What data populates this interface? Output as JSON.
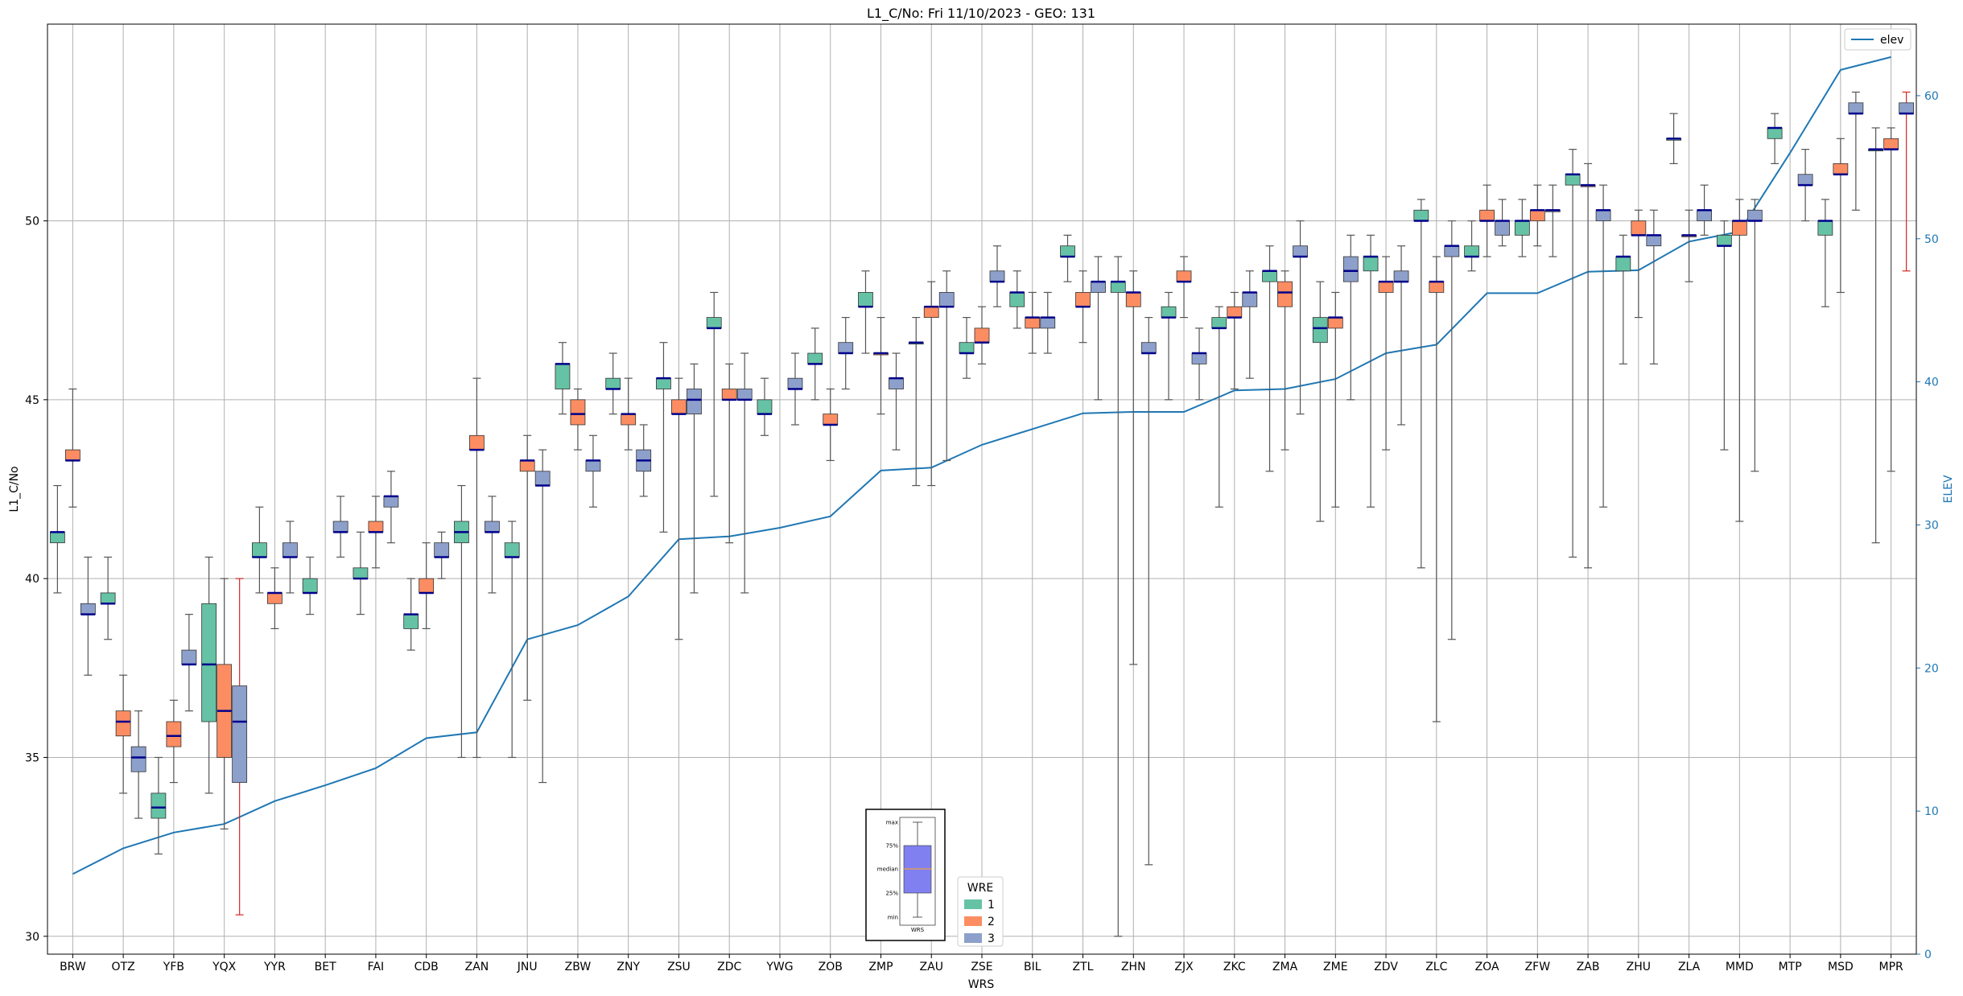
{
  "chart_data": {
    "type": "box",
    "title": "L1_C/No: Fri 11/10/2023 - GEO: 131",
    "xlabel": "WRS",
    "ylabel": "L1_C/No",
    "y2label": "ELEV",
    "ylim": [
      29.5,
      55.5
    ],
    "y2lim": [
      0,
      65
    ],
    "yticks": [
      30,
      35,
      40,
      45,
      50
    ],
    "y2ticks": [
      0,
      10,
      20,
      30,
      40,
      50,
      60
    ],
    "grid": true,
    "categories": [
      "BRW",
      "OTZ",
      "YFB",
      "YQX",
      "YYR",
      "BET",
      "FAI",
      "CDB",
      "ZAN",
      "JNU",
      "ZBW",
      "ZNY",
      "ZSU",
      "ZDC",
      "YWG",
      "ZOB",
      "ZMP",
      "ZAU",
      "ZSE",
      "BIL",
      "ZTL",
      "ZHN",
      "ZJX",
      "ZKC",
      "ZMA",
      "ZME",
      "ZDV",
      "ZLC",
      "ZOA",
      "ZFW",
      "ZAB",
      "ZHU",
      "ZLA",
      "MMD",
      "MTP",
      "MSD",
      "MPR"
    ],
    "wre_legend": {
      "title": "WRE",
      "entries": [
        "1",
        "2",
        "3"
      ]
    },
    "wre_colors": {
      "1": "#66c2a5",
      "2": "#fc8d62",
      "3": "#8da0cb"
    },
    "median_color": "#00008b",
    "elev_color": "#1f77b4",
    "outlier_whisker_color": "#d62728",
    "elev_series": {
      "name": "elev",
      "values": [
        5.6,
        7.4,
        8.5,
        9.1,
        10.7,
        11.8,
        13.0,
        15.1,
        15.5,
        22.0,
        23.0,
        25.0,
        29.0,
        29.2,
        29.8,
        30.6,
        33.8,
        34.0,
        35.6,
        36.7,
        37.8,
        37.9,
        37.9,
        39.4,
        39.5,
        40.2,
        42.0,
        42.6,
        46.2,
        46.2,
        47.7,
        47.8,
        49.8,
        50.5,
        56.0,
        61.8,
        62.7
      ]
    },
    "boxes": [
      {
        "wrs": "BRW",
        "wre": "1",
        "min": 39.6,
        "q1": 41.0,
        "median": 41.3,
        "q3": 41.3,
        "max": 42.6
      },
      {
        "wrs": "BRW",
        "wre": "2",
        "min": 42.0,
        "q1": 43.3,
        "median": 43.3,
        "q3": 43.6,
        "max": 45.3
      },
      {
        "wrs": "BRW",
        "wre": "3",
        "min": 37.3,
        "q1": 39.0,
        "median": 39.0,
        "q3": 39.3,
        "max": 40.6
      },
      {
        "wrs": "OTZ",
        "wre": "1",
        "min": 38.3,
        "q1": 39.3,
        "median": 39.3,
        "q3": 39.6,
        "max": 40.6
      },
      {
        "wrs": "OTZ",
        "wre": "2",
        "min": 34.0,
        "q1": 35.6,
        "median": 36.0,
        "q3": 36.3,
        "max": 37.3
      },
      {
        "wrs": "OTZ",
        "wre": "3",
        "min": 33.3,
        "q1": 34.6,
        "median": 35.0,
        "q3": 35.3,
        "max": 36.3
      },
      {
        "wrs": "YFB",
        "wre": "1",
        "min": 32.3,
        "q1": 33.3,
        "median": 33.6,
        "q3": 34.0,
        "max": 35.0
      },
      {
        "wrs": "YFB",
        "wre": "2",
        "min": 34.3,
        "q1": 35.3,
        "median": 35.6,
        "q3": 36.0,
        "max": 36.6
      },
      {
        "wrs": "YFB",
        "wre": "3",
        "min": 36.3,
        "q1": 37.6,
        "median": 37.6,
        "q3": 38.0,
        "max": 39.0
      },
      {
        "wrs": "YQX",
        "wre": "1",
        "min": 34.0,
        "q1": 36.0,
        "median": 37.6,
        "q3": 39.3,
        "max": 40.6
      },
      {
        "wrs": "YQX",
        "wre": "2",
        "min": 33.0,
        "q1": 35.0,
        "median": 36.3,
        "q3": 37.6,
        "max": 40.0
      },
      {
        "wrs": "YQX",
        "wre": "3",
        "min": 30.6,
        "q1": 34.3,
        "median": 36.0,
        "q3": 37.0,
        "max": 40.0,
        "red": true
      },
      {
        "wrs": "YYR",
        "wre": "1",
        "min": 39.6,
        "q1": 40.6,
        "median": 40.6,
        "q3": 41.0,
        "max": 42.0
      },
      {
        "wrs": "YYR",
        "wre": "2",
        "min": 38.6,
        "q1": 39.3,
        "median": 39.6,
        "q3": 39.6,
        "max": 40.3
      },
      {
        "wrs": "YYR",
        "wre": "3",
        "min": 39.6,
        "q1": 40.6,
        "median": 40.6,
        "q3": 41.0,
        "max": 41.6
      },
      {
        "wrs": "BET",
        "wre": "1",
        "min": 39.0,
        "q1": 39.6,
        "median": 39.6,
        "q3": 40.0,
        "max": 40.6
      },
      {
        "wrs": "BET",
        "wre": "3",
        "min": 40.6,
        "q1": 41.3,
        "median": 41.3,
        "q3": 41.6,
        "max": 42.3
      },
      {
        "wrs": "FAI",
        "wre": "1",
        "min": 39.0,
        "q1": 40.0,
        "median": 40.0,
        "q3": 40.3,
        "max": 41.3
      },
      {
        "wrs": "FAI",
        "wre": "2",
        "min": 40.3,
        "q1": 41.3,
        "median": 41.3,
        "q3": 41.6,
        "max": 42.3
      },
      {
        "wrs": "FAI",
        "wre": "3",
        "min": 41.0,
        "q1": 42.0,
        "median": 42.3,
        "q3": 42.3,
        "max": 43.0
      },
      {
        "wrs": "CDB",
        "wre": "1",
        "min": 38.0,
        "q1": 38.6,
        "median": 39.0,
        "q3": 39.0,
        "max": 40.0
      },
      {
        "wrs": "CDB",
        "wre": "2",
        "min": 38.6,
        "q1": 39.6,
        "median": 39.6,
        "q3": 40.0,
        "max": 41.0
      },
      {
        "wrs": "CDB",
        "wre": "3",
        "min": 40.0,
        "q1": 40.6,
        "median": 40.6,
        "q3": 41.0,
        "max": 41.3
      },
      {
        "wrs": "ZAN",
        "wre": "1",
        "min": 35.0,
        "q1": 41.0,
        "median": 41.3,
        "q3": 41.6,
        "max": 42.6
      },
      {
        "wrs": "ZAN",
        "wre": "2",
        "min": 35.0,
        "q1": 43.6,
        "median": 43.6,
        "q3": 44.0,
        "max": 45.6
      },
      {
        "wrs": "ZAN",
        "wre": "3",
        "min": 39.6,
        "q1": 41.3,
        "median": 41.3,
        "q3": 41.6,
        "max": 42.3
      },
      {
        "wrs": "JNU",
        "wre": "1",
        "min": 35.0,
        "q1": 40.6,
        "median": 40.6,
        "q3": 41.0,
        "max": 41.6
      },
      {
        "wrs": "JNU",
        "wre": "2",
        "min": 36.6,
        "q1": 43.0,
        "median": 43.3,
        "q3": 43.3,
        "max": 44.0
      },
      {
        "wrs": "JNU",
        "wre": "3",
        "min": 34.3,
        "q1": 42.6,
        "median": 42.6,
        "q3": 43.0,
        "max": 43.6
      },
      {
        "wrs": "ZBW",
        "wre": "1",
        "min": 44.6,
        "q1": 45.3,
        "median": 46.0,
        "q3": 46.0,
        "max": 46.6
      },
      {
        "wrs": "ZBW",
        "wre": "2",
        "min": 43.6,
        "q1": 44.3,
        "median": 44.6,
        "q3": 45.0,
        "max": 45.3
      },
      {
        "wrs": "ZBW",
        "wre": "3",
        "min": 42.0,
        "q1": 43.0,
        "median": 43.3,
        "q3": 43.3,
        "max": 44.0
      },
      {
        "wrs": "ZNY",
        "wre": "1",
        "min": 44.6,
        "q1": 45.3,
        "median": 45.3,
        "q3": 45.6,
        "max": 46.3
      },
      {
        "wrs": "ZNY",
        "wre": "2",
        "min": 43.6,
        "q1": 44.3,
        "median": 44.6,
        "q3": 44.6,
        "max": 45.6
      },
      {
        "wrs": "ZNY",
        "wre": "3",
        "min": 42.3,
        "q1": 43.0,
        "median": 43.3,
        "q3": 43.6,
        "max": 44.3
      },
      {
        "wrs": "ZSU",
        "wre": "1",
        "min": 41.3,
        "q1": 45.3,
        "median": 45.6,
        "q3": 45.6,
        "max": 46.6
      },
      {
        "wrs": "ZSU",
        "wre": "2",
        "min": 38.3,
        "q1": 44.6,
        "median": 44.6,
        "q3": 45.0,
        "max": 45.6
      },
      {
        "wrs": "ZSU",
        "wre": "3",
        "min": 39.6,
        "q1": 44.6,
        "median": 45.0,
        "q3": 45.3,
        "max": 46.0
      },
      {
        "wrs": "ZDC",
        "wre": "1",
        "min": 42.3,
        "q1": 47.0,
        "median": 47.0,
        "q3": 47.3,
        "max": 48.0
      },
      {
        "wrs": "ZDC",
        "wre": "2",
        "min": 41.0,
        "q1": 45.0,
        "median": 45.0,
        "q3": 45.3,
        "max": 46.0
      },
      {
        "wrs": "ZDC",
        "wre": "3",
        "min": 39.6,
        "q1": 45.0,
        "median": 45.0,
        "q3": 45.3,
        "max": 46.3
      },
      {
        "wrs": "YWG",
        "wre": "1",
        "min": 44.0,
        "q1": 44.6,
        "median": 44.6,
        "q3": 45.0,
        "max": 45.6
      },
      {
        "wrs": "YWG",
        "wre": "3",
        "min": 44.3,
        "q1": 45.3,
        "median": 45.3,
        "q3": 45.6,
        "max": 46.3
      },
      {
        "wrs": "ZOB",
        "wre": "1",
        "min": 45.0,
        "q1": 46.0,
        "median": 46.0,
        "q3": 46.3,
        "max": 47.0
      },
      {
        "wrs": "ZOB",
        "wre": "2",
        "min": 43.3,
        "q1": 44.3,
        "median": 44.3,
        "q3": 44.6,
        "max": 45.3
      },
      {
        "wrs": "ZOB",
        "wre": "3",
        "min": 45.3,
        "q1": 46.3,
        "median": 46.3,
        "q3": 46.6,
        "max": 47.3
      },
      {
        "wrs": "ZMP",
        "wre": "1",
        "min": 46.3,
        "q1": 47.6,
        "median": 47.6,
        "q3": 48.0,
        "max": 48.6
      },
      {
        "wrs": "ZMP",
        "wre": "2",
        "min": 44.6,
        "q1": 46.3,
        "median": 46.3,
        "q3": 46.3,
        "max": 47.3
      },
      {
        "wrs": "ZMP",
        "wre": "3",
        "min": 43.6,
        "q1": 45.3,
        "median": 45.6,
        "q3": 45.6,
        "max": 46.3
      },
      {
        "wrs": "ZAU",
        "wre": "1",
        "min": 42.6,
        "q1": 46.6,
        "median": 46.6,
        "q3": 46.6,
        "max": 47.3
      },
      {
        "wrs": "ZAU",
        "wre": "2",
        "min": 42.6,
        "q1": 47.3,
        "median": 47.6,
        "q3": 47.6,
        "max": 48.3
      },
      {
        "wrs": "ZAU",
        "wre": "3",
        "min": 43.3,
        "q1": 47.6,
        "median": 47.6,
        "q3": 48.0,
        "max": 48.6
      },
      {
        "wrs": "ZSE",
        "wre": "1",
        "min": 45.6,
        "q1": 46.3,
        "median": 46.3,
        "q3": 46.6,
        "max": 47.3
      },
      {
        "wrs": "ZSE",
        "wre": "2",
        "min": 46.0,
        "q1": 46.6,
        "median": 46.6,
        "q3": 47.0,
        "max": 47.6
      },
      {
        "wrs": "ZSE",
        "wre": "3",
        "min": 47.6,
        "q1": 48.3,
        "median": 48.3,
        "q3": 48.6,
        "max": 49.3
      },
      {
        "wrs": "BIL",
        "wre": "1",
        "min": 47.0,
        "q1": 47.6,
        "median": 48.0,
        "q3": 48.0,
        "max": 48.6
      },
      {
        "wrs": "BIL",
        "wre": "2",
        "min": 46.3,
        "q1": 47.0,
        "median": 47.3,
        "q3": 47.3,
        "max": 48.0
      },
      {
        "wrs": "BIL",
        "wre": "3",
        "min": 46.3,
        "q1": 47.0,
        "median": 47.3,
        "q3": 47.3,
        "max": 48.0
      },
      {
        "wrs": "ZTL",
        "wre": "1",
        "min": 48.3,
        "q1": 49.0,
        "median": 49.0,
        "q3": 49.3,
        "max": 49.6
      },
      {
        "wrs": "ZTL",
        "wre": "2",
        "min": 46.6,
        "q1": 47.6,
        "median": 47.6,
        "q3": 48.0,
        "max": 48.6
      },
      {
        "wrs": "ZTL",
        "wre": "3",
        "min": 45.0,
        "q1": 48.0,
        "median": 48.3,
        "q3": 48.3,
        "max": 49.0
      },
      {
        "wrs": "ZHN",
        "wre": "1",
        "min": 30.0,
        "q1": 48.0,
        "median": 48.3,
        "q3": 48.3,
        "max": 49.0
      },
      {
        "wrs": "ZHN",
        "wre": "2",
        "min": 37.6,
        "q1": 47.6,
        "median": 48.0,
        "q3": 48.0,
        "max": 48.6
      },
      {
        "wrs": "ZHN",
        "wre": "3",
        "min": 32.0,
        "q1": 46.3,
        "median": 46.3,
        "q3": 46.6,
        "max": 47.3
      },
      {
        "wrs": "ZJX",
        "wre": "1",
        "min": 45.0,
        "q1": 47.3,
        "median": 47.3,
        "q3": 47.6,
        "max": 48.0
      },
      {
        "wrs": "ZJX",
        "wre": "2",
        "min": 47.3,
        "q1": 48.3,
        "median": 48.3,
        "q3": 48.6,
        "max": 49.0
      },
      {
        "wrs": "ZJX",
        "wre": "3",
        "min": 45.0,
        "q1": 46.0,
        "median": 46.3,
        "q3": 46.3,
        "max": 47.0
      },
      {
        "wrs": "ZKC",
        "wre": "1",
        "min": 42.0,
        "q1": 47.0,
        "median": 47.0,
        "q3": 47.3,
        "max": 47.6
      },
      {
        "wrs": "ZKC",
        "wre": "2",
        "min": 45.3,
        "q1": 47.3,
        "median": 47.3,
        "q3": 47.6,
        "max": 48.0
      },
      {
        "wrs": "ZKC",
        "wre": "3",
        "min": 45.6,
        "q1": 47.6,
        "median": 48.0,
        "q3": 48.0,
        "max": 48.6
      },
      {
        "wrs": "ZMA",
        "wre": "1",
        "min": 43.0,
        "q1": 48.3,
        "median": 48.6,
        "q3": 48.6,
        "max": 49.3
      },
      {
        "wrs": "ZMA",
        "wre": "2",
        "min": 43.6,
        "q1": 47.6,
        "median": 48.0,
        "q3": 48.3,
        "max": 48.6
      },
      {
        "wrs": "ZMA",
        "wre": "3",
        "min": 44.6,
        "q1": 49.0,
        "median": 49.0,
        "q3": 49.3,
        "max": 50.0
      },
      {
        "wrs": "ZME",
        "wre": "1",
        "min": 41.6,
        "q1": 46.6,
        "median": 47.0,
        "q3": 47.3,
        "max": 48.3
      },
      {
        "wrs": "ZME",
        "wre": "2",
        "min": 42.0,
        "q1": 47.0,
        "median": 47.3,
        "q3": 47.3,
        "max": 48.0
      },
      {
        "wrs": "ZME",
        "wre": "3",
        "min": 45.0,
        "q1": 48.3,
        "median": 48.6,
        "q3": 49.0,
        "max": 49.6
      },
      {
        "wrs": "ZDV",
        "wre": "1",
        "min": 42.0,
        "q1": 48.6,
        "median": 49.0,
        "q3": 49.0,
        "max": 49.6
      },
      {
        "wrs": "ZDV",
        "wre": "2",
        "min": 43.6,
        "q1": 48.0,
        "median": 48.3,
        "q3": 48.3,
        "max": 49.0
      },
      {
        "wrs": "ZDV",
        "wre": "3",
        "min": 44.3,
        "q1": 48.3,
        "median": 48.3,
        "q3": 48.6,
        "max": 49.3
      },
      {
        "wrs": "ZLC",
        "wre": "1",
        "min": 40.3,
        "q1": 50.0,
        "median": 50.0,
        "q3": 50.3,
        "max": 50.6
      },
      {
        "wrs": "ZLC",
        "wre": "2",
        "min": 36.0,
        "q1": 48.0,
        "median": 48.3,
        "q3": 48.3,
        "max": 49.0
      },
      {
        "wrs": "ZLC",
        "wre": "3",
        "min": 38.3,
        "q1": 49.0,
        "median": 49.3,
        "q3": 49.3,
        "max": 50.0
      },
      {
        "wrs": "ZOA",
        "wre": "1",
        "min": 48.6,
        "q1": 49.0,
        "median": 49.0,
        "q3": 49.3,
        "max": 50.0
      },
      {
        "wrs": "ZOA",
        "wre": "2",
        "min": 49.0,
        "q1": 50.0,
        "median": 50.0,
        "q3": 50.3,
        "max": 51.0
      },
      {
        "wrs": "ZOA",
        "wre": "3",
        "min": 49.3,
        "q1": 49.6,
        "median": 50.0,
        "q3": 50.0,
        "max": 50.6
      },
      {
        "wrs": "ZFW",
        "wre": "1",
        "min": 49.0,
        "q1": 49.6,
        "median": 50.0,
        "q3": 50.0,
        "max": 50.6
      },
      {
        "wrs": "ZFW",
        "wre": "2",
        "min": 49.3,
        "q1": 50.0,
        "median": 50.3,
        "q3": 50.3,
        "max": 51.0
      },
      {
        "wrs": "ZFW",
        "wre": "3",
        "min": 49.0,
        "q1": 50.3,
        "median": 50.3,
        "q3": 50.3,
        "max": 51.0
      },
      {
        "wrs": "ZAB",
        "wre": "1",
        "min": 40.6,
        "q1": 51.0,
        "median": 51.3,
        "q3": 51.3,
        "max": 52.0
      },
      {
        "wrs": "ZAB",
        "wre": "2",
        "min": 40.3,
        "q1": 51.0,
        "median": 51.0,
        "q3": 51.0,
        "max": 51.6
      },
      {
        "wrs": "ZAB",
        "wre": "3",
        "min": 42.0,
        "q1": 50.0,
        "median": 50.3,
        "q3": 50.3,
        "max": 51.0
      },
      {
        "wrs": "ZHU",
        "wre": "1",
        "min": 46.0,
        "q1": 48.6,
        "median": 49.0,
        "q3": 49.0,
        "max": 49.6
      },
      {
        "wrs": "ZHU",
        "wre": "2",
        "min": 47.3,
        "q1": 49.6,
        "median": 49.6,
        "q3": 50.0,
        "max": 50.3
      },
      {
        "wrs": "ZHU",
        "wre": "3",
        "min": 46.0,
        "q1": 49.3,
        "median": 49.6,
        "q3": 49.6,
        "max": 50.3
      },
      {
        "wrs": "ZLA",
        "wre": "1",
        "min": 51.6,
        "q1": 52.3,
        "median": 52.3,
        "q3": 52.3,
        "max": 53.0
      },
      {
        "wrs": "ZLA",
        "wre": "2",
        "min": 48.3,
        "q1": 49.6,
        "median": 49.6,
        "q3": 49.6,
        "max": 50.3
      },
      {
        "wrs": "ZLA",
        "wre": "3",
        "min": 49.6,
        "q1": 50.0,
        "median": 50.3,
        "q3": 50.3,
        "max": 51.0
      },
      {
        "wrs": "MMD",
        "wre": "1",
        "min": 43.6,
        "q1": 49.3,
        "median": 49.3,
        "q3": 49.6,
        "max": 50.0
      },
      {
        "wrs": "MMD",
        "wre": "2",
        "min": 41.6,
        "q1": 49.6,
        "median": 50.0,
        "q3": 50.0,
        "max": 50.6
      },
      {
        "wrs": "MMD",
        "wre": "3",
        "min": 43.0,
        "q1": 50.0,
        "median": 50.0,
        "q3": 50.3,
        "max": 50.6
      },
      {
        "wrs": "MTP",
        "wre": "1",
        "min": 51.6,
        "q1": 52.3,
        "median": 52.6,
        "q3": 52.6,
        "max": 53.0
      },
      {
        "wrs": "MTP",
        "wre": "3",
        "min": 50.0,
        "q1": 51.0,
        "median": 51.0,
        "q3": 51.3,
        "max": 52.0
      },
      {
        "wrs": "MSD",
        "wre": "1",
        "min": 47.6,
        "q1": 49.6,
        "median": 50.0,
        "q3": 50.0,
        "max": 50.6
      },
      {
        "wrs": "MSD",
        "wre": "2",
        "min": 48.0,
        "q1": 51.3,
        "median": 51.3,
        "q3": 51.6,
        "max": 52.3
      },
      {
        "wrs": "MSD",
        "wre": "3",
        "min": 50.3,
        "q1": 53.0,
        "median": 53.0,
        "q3": 53.3,
        "max": 53.6
      },
      {
        "wrs": "MPR",
        "wre": "1",
        "min": 41.0,
        "q1": 52.0,
        "median": 52.0,
        "q3": 52.0,
        "max": 52.6
      },
      {
        "wrs": "MPR",
        "wre": "2",
        "min": 43.0,
        "q1": 52.0,
        "median": 52.0,
        "q3": 52.3,
        "max": 52.6
      },
      {
        "wrs": "MPR",
        "wre": "3",
        "min": 48.6,
        "q1": 53.0,
        "median": 53.0,
        "q3": 53.3,
        "max": 53.6,
        "red": true
      }
    ],
    "inset_legend": {
      "labels": [
        "max",
        "75%",
        "median",
        "25%",
        "min"
      ],
      "xtick": "WRS"
    }
  }
}
